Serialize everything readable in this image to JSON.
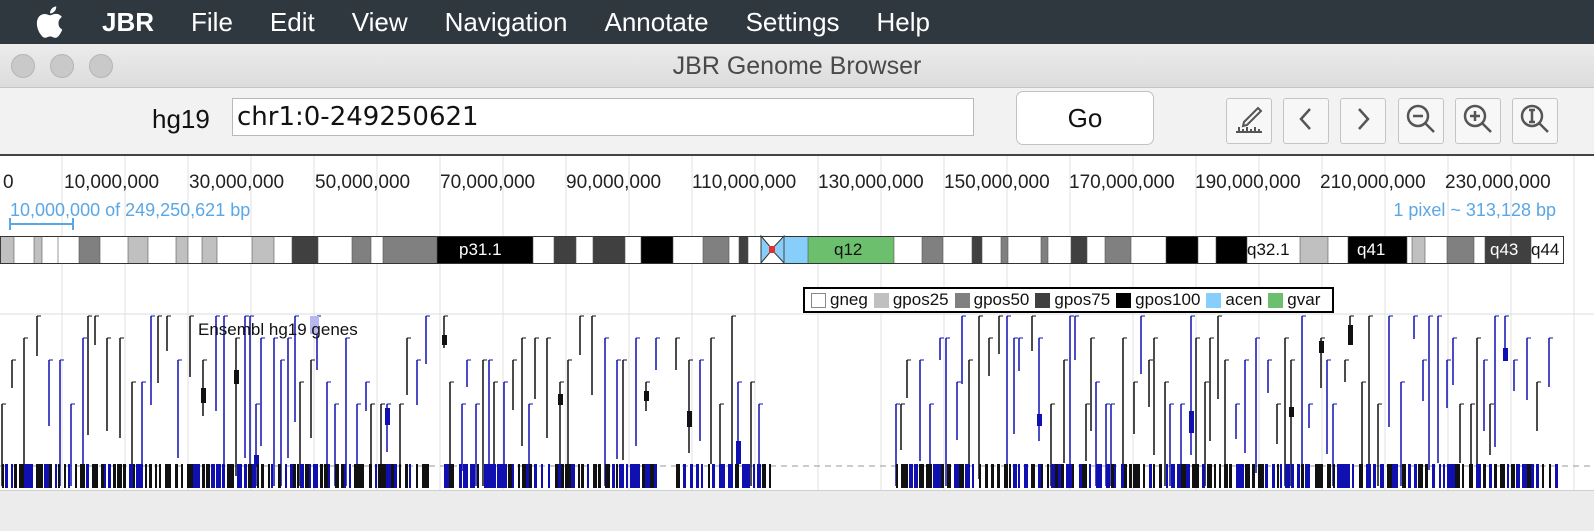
{
  "menubar": {
    "app": "JBR",
    "items": [
      "File",
      "Edit",
      "View",
      "Navigation",
      "Annotate",
      "Settings",
      "Help"
    ]
  },
  "window": {
    "title": "JBR Genome Browser"
  },
  "toolbar": {
    "genome": "hg19",
    "locus": "chr1:0-249250621",
    "go_label": "Go",
    "buttons": [
      "ruler-icon",
      "back-icon",
      "forward-icon",
      "zoom-out-icon",
      "zoom-in-icon",
      "zoom-fit-icon"
    ]
  },
  "ruler": {
    "ticks": [
      "0",
      "10,000,000",
      "30,000,000",
      "50,000,000",
      "70,000,000",
      "90,000,000",
      "110,000,000",
      "130,000,000",
      "150,000,000",
      "170,000,000",
      "190,000,000",
      "210,000,000",
      "230,000,000"
    ],
    "scale_text": "10,000,000 of 249,250,621 bp",
    "resolution_text": "1 pixel ~ 313,128 bp"
  },
  "ideogram": {
    "labels": [
      "p31.1",
      "q12",
      "q32.1",
      "q41",
      "q43",
      "q44"
    ]
  },
  "legend": [
    {
      "name": "gneg",
      "color": "#ffffff"
    },
    {
      "name": "gpos25",
      "color": "#c0c0c0"
    },
    {
      "name": "gpos50",
      "color": "#808080"
    },
    {
      "name": "gpos75",
      "color": "#404040"
    },
    {
      "name": "gpos100",
      "color": "#000000"
    },
    {
      "name": "acen",
      "color": "#87cefa"
    },
    {
      "name": "gvar",
      "color": "#6cbf6c"
    }
  ],
  "track": {
    "name": "Ensembl hg19 genes"
  },
  "colors": {
    "gene_blue": "#1010b0",
    "menubar": "#2f373f",
    "scale": "#5aa7e6"
  }
}
